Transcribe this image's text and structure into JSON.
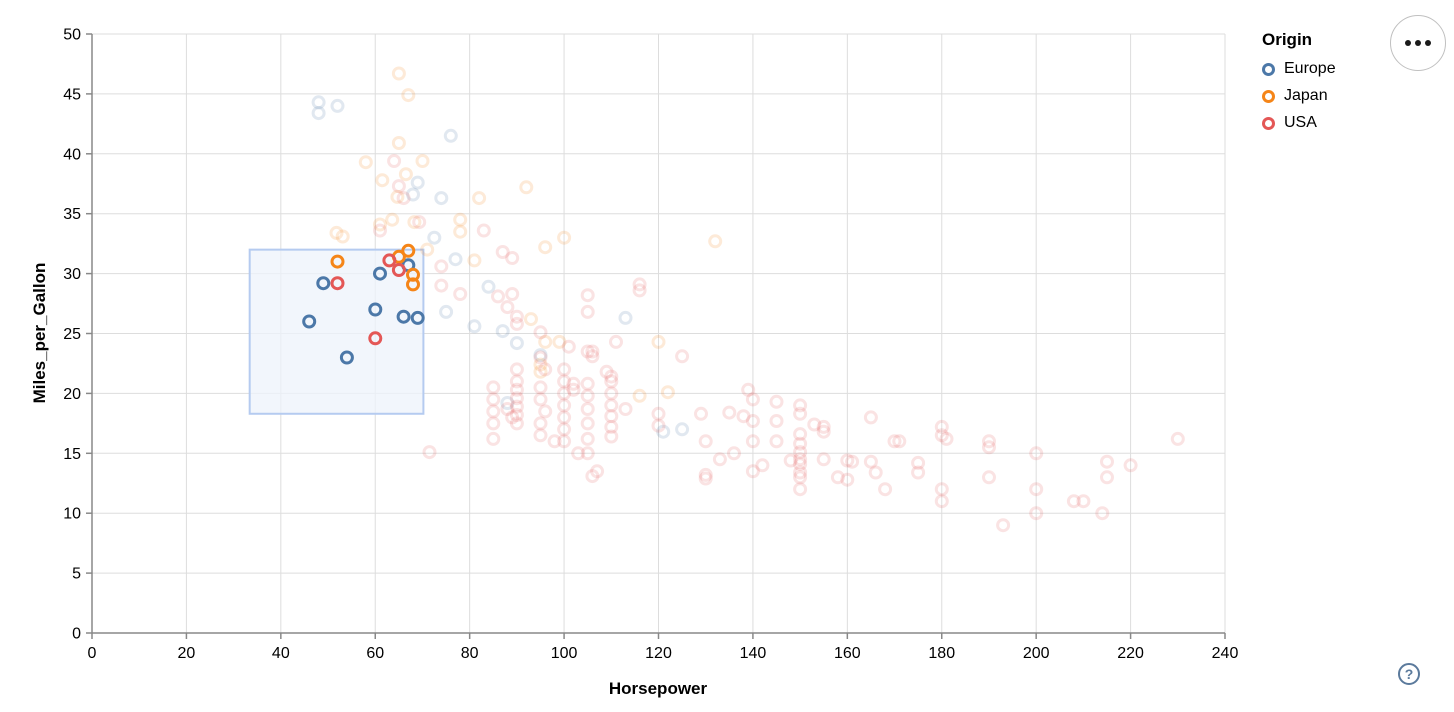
{
  "legend": {
    "title": "Origin",
    "items": [
      {
        "label": "Europe",
        "color": "#4c78a8"
      },
      {
        "label": "Japan",
        "color": "#f58518"
      },
      {
        "label": "USA",
        "color": "#e45756"
      }
    ]
  },
  "controls": {
    "menu_icon": "ellipsis-icon",
    "help_icon": "question-mark-icon",
    "help_char": "?"
  },
  "style": {
    "grid_color": "#dddddd",
    "axis_color": "#888888",
    "label_color": "#000000",
    "brush_fill": "#eef3fb",
    "brush_stroke": "#b5cbf0",
    "unselected_opacity": 0.17,
    "point_radius": 5.5,
    "point_stroke_width": 3
  },
  "chart_data": {
    "type": "scatter",
    "title": "",
    "xlabel": "Horsepower",
    "ylabel": "Miles_per_Gallon",
    "xlim": [
      0,
      240
    ],
    "ylim": [
      0,
      50
    ],
    "x_ticks": [
      0,
      20,
      40,
      60,
      80,
      100,
      120,
      140,
      160,
      180,
      200,
      220,
      240
    ],
    "y_ticks": [
      0,
      5,
      10,
      15,
      20,
      25,
      30,
      35,
      40,
      45,
      50
    ],
    "grid": true,
    "legend_position": "top-right",
    "brush": {
      "x": [
        33.4,
        70.2
      ],
      "y": [
        18.3,
        32.0
      ]
    },
    "series": [
      {
        "name": "Europe",
        "color": "#4c78a8",
        "points": [
          [
            46,
            26
          ],
          [
            49,
            29.2
          ],
          [
            54,
            23
          ],
          [
            60,
            27
          ],
          [
            61,
            30
          ],
          [
            67,
            30.7
          ],
          [
            66,
            26.4
          ],
          [
            69,
            26.3
          ],
          [
            48,
            44.3
          ],
          [
            52,
            44
          ],
          [
            48,
            43.4
          ],
          [
            76,
            41.5
          ],
          [
            69,
            37.6
          ],
          [
            68,
            36.6
          ],
          [
            74,
            36.3
          ],
          [
            72.5,
            33
          ],
          [
            77,
            31.2
          ],
          [
            75,
            26.8
          ],
          [
            84,
            28.9
          ],
          [
            81,
            25.6
          ],
          [
            87,
            25.2
          ],
          [
            95,
            23.2
          ],
          [
            113,
            26.3
          ],
          [
            121,
            16.8
          ],
          [
            125,
            17
          ],
          [
            88,
            19.2
          ],
          [
            90,
            24.2
          ]
        ]
      },
      {
        "name": "Japan",
        "color": "#f58518",
        "points": [
          [
            52,
            31
          ],
          [
            65,
            31.4
          ],
          [
            67,
            31.9
          ],
          [
            68,
            29.9
          ],
          [
            68,
            29.1
          ],
          [
            65,
            46.7
          ],
          [
            67,
            44.9
          ],
          [
            65,
            40.9
          ],
          [
            70,
            39.4
          ],
          [
            58,
            39.3
          ],
          [
            66.5,
            38.3
          ],
          [
            61.5,
            37.8
          ],
          [
            64.7,
            36.4
          ],
          [
            63.6,
            34.5
          ],
          [
            68.3,
            34.3
          ],
          [
            61,
            34.1
          ],
          [
            51.8,
            33.4
          ],
          [
            53.1,
            33.1
          ],
          [
            71,
            32
          ],
          [
            78,
            34.5
          ],
          [
            78,
            33.5
          ],
          [
            82,
            36.3
          ],
          [
            92,
            37.2
          ],
          [
            96,
            32.2
          ],
          [
            100,
            33
          ],
          [
            132,
            32.7
          ],
          [
            81,
            31.1
          ],
          [
            93,
            26.2
          ],
          [
            96,
            24.3
          ],
          [
            99,
            24.3
          ],
          [
            95,
            22.4
          ],
          [
            95,
            21.8
          ],
          [
            120,
            24.3
          ],
          [
            116,
            19.8
          ],
          [
            122,
            20.1
          ]
        ]
      },
      {
        "name": "USA",
        "color": "#e45756",
        "points": [
          [
            52,
            29.2
          ],
          [
            60,
            24.6
          ],
          [
            63,
            31.1
          ],
          [
            65,
            30.3
          ],
          [
            64,
            39.4
          ],
          [
            65,
            37.3
          ],
          [
            66,
            36.3
          ],
          [
            69.3,
            34.3
          ],
          [
            61,
            33.6
          ],
          [
            83,
            33.6
          ],
          [
            87,
            31.8
          ],
          [
            89,
            31.3
          ],
          [
            74,
            30.6
          ],
          [
            74,
            29
          ],
          [
            78,
            28.3
          ],
          [
            86,
            28.1
          ],
          [
            89,
            28.3
          ],
          [
            88,
            27.2
          ],
          [
            90,
            26.4
          ],
          [
            90,
            25.8
          ],
          [
            95,
            25.1
          ],
          [
            101,
            23.9
          ],
          [
            105,
            28.2
          ],
          [
            105,
            26.8
          ],
          [
            116,
            29.1
          ],
          [
            116,
            28.6
          ],
          [
            111,
            24.3
          ],
          [
            106,
            23.5
          ],
          [
            106,
            23.1
          ],
          [
            109,
            21.8
          ],
          [
            110,
            21.4
          ],
          [
            102,
            20.8
          ],
          [
            102,
            20.3
          ],
          [
            85,
            20.5
          ],
          [
            85,
            19.5
          ],
          [
            85,
            18.5
          ],
          [
            85,
            17.5
          ],
          [
            85,
            16.2
          ],
          [
            88,
            18.7
          ],
          [
            89,
            18
          ],
          [
            90,
            22
          ],
          [
            90,
            21
          ],
          [
            90,
            20.3
          ],
          [
            90,
            19.6
          ],
          [
            90,
            18.9
          ],
          [
            90,
            18.2
          ],
          [
            90,
            17.5
          ],
          [
            95,
            23
          ],
          [
            96,
            22
          ],
          [
            95,
            20.5
          ],
          [
            95,
            19.5
          ],
          [
            96,
            18.5
          ],
          [
            95,
            17.5
          ],
          [
            95,
            16.5
          ],
          [
            100,
            22
          ],
          [
            100,
            21
          ],
          [
            100,
            20
          ],
          [
            100,
            19
          ],
          [
            100,
            18
          ],
          [
            100,
            17
          ],
          [
            100,
            16
          ],
          [
            105,
            23.5
          ],
          [
            105,
            20.8
          ],
          [
            105,
            19.8
          ],
          [
            105,
            18.7
          ],
          [
            105,
            17.5
          ],
          [
            105,
            16.2
          ],
          [
            105,
            15
          ],
          [
            110,
            21
          ],
          [
            110,
            20
          ],
          [
            110,
            19
          ],
          [
            110,
            18.1
          ],
          [
            110,
            17.2
          ],
          [
            110,
            16.4
          ],
          [
            98,
            16
          ],
          [
            103,
            15
          ],
          [
            107,
            13.5
          ],
          [
            106,
            13.1
          ],
          [
            113,
            18.7
          ],
          [
            71.5,
            15.1
          ],
          [
            120,
            18.3
          ],
          [
            120,
            17.3
          ],
          [
            125,
            23.1
          ],
          [
            129,
            18.3
          ],
          [
            130,
            16
          ],
          [
            130,
            13.2
          ],
          [
            130,
            12.9
          ],
          [
            133,
            14.5
          ],
          [
            135,
            18.4
          ],
          [
            136,
            15
          ],
          [
            138,
            18.1
          ],
          [
            139,
            20.3
          ],
          [
            140,
            19.5
          ],
          [
            140,
            17.7
          ],
          [
            140,
            16
          ],
          [
            140,
            13.5
          ],
          [
            142,
            14
          ],
          [
            145,
            19.3
          ],
          [
            145,
            17.7
          ],
          [
            145,
            16
          ],
          [
            148,
            14.4
          ],
          [
            150,
            19
          ],
          [
            150,
            18.3
          ],
          [
            150,
            16.6
          ],
          [
            150,
            15.8
          ],
          [
            150,
            15.1
          ],
          [
            150,
            14.5
          ],
          [
            150,
            14.1
          ],
          [
            150,
            13.4
          ],
          [
            150,
            13
          ],
          [
            150,
            12
          ],
          [
            153,
            17.4
          ],
          [
            155,
            17.2
          ],
          [
            155,
            16.8
          ],
          [
            155,
            14.5
          ],
          [
            158,
            13
          ],
          [
            160,
            14.4
          ],
          [
            161,
            14.3
          ],
          [
            160,
            12.8
          ],
          [
            165,
            18
          ],
          [
            165,
            14.3
          ],
          [
            166,
            13.4
          ],
          [
            168,
            12
          ],
          [
            170,
            16
          ],
          [
            171,
            16
          ],
          [
            175,
            14.2
          ],
          [
            175,
            13.4
          ],
          [
            180,
            17.2
          ],
          [
            180,
            16.5
          ],
          [
            181,
            16.2
          ],
          [
            180,
            12
          ],
          [
            180,
            11
          ],
          [
            190,
            16
          ],
          [
            190,
            15.5
          ],
          [
            190,
            13
          ],
          [
            193,
            9
          ],
          [
            200,
            15
          ],
          [
            200,
            12
          ],
          [
            200,
            10
          ],
          [
            208,
            11
          ],
          [
            210,
            11
          ],
          [
            215,
            14.3
          ],
          [
            215,
            13
          ],
          [
            214,
            10
          ],
          [
            220,
            14
          ],
          [
            230,
            16.2
          ]
        ]
      }
    ]
  }
}
